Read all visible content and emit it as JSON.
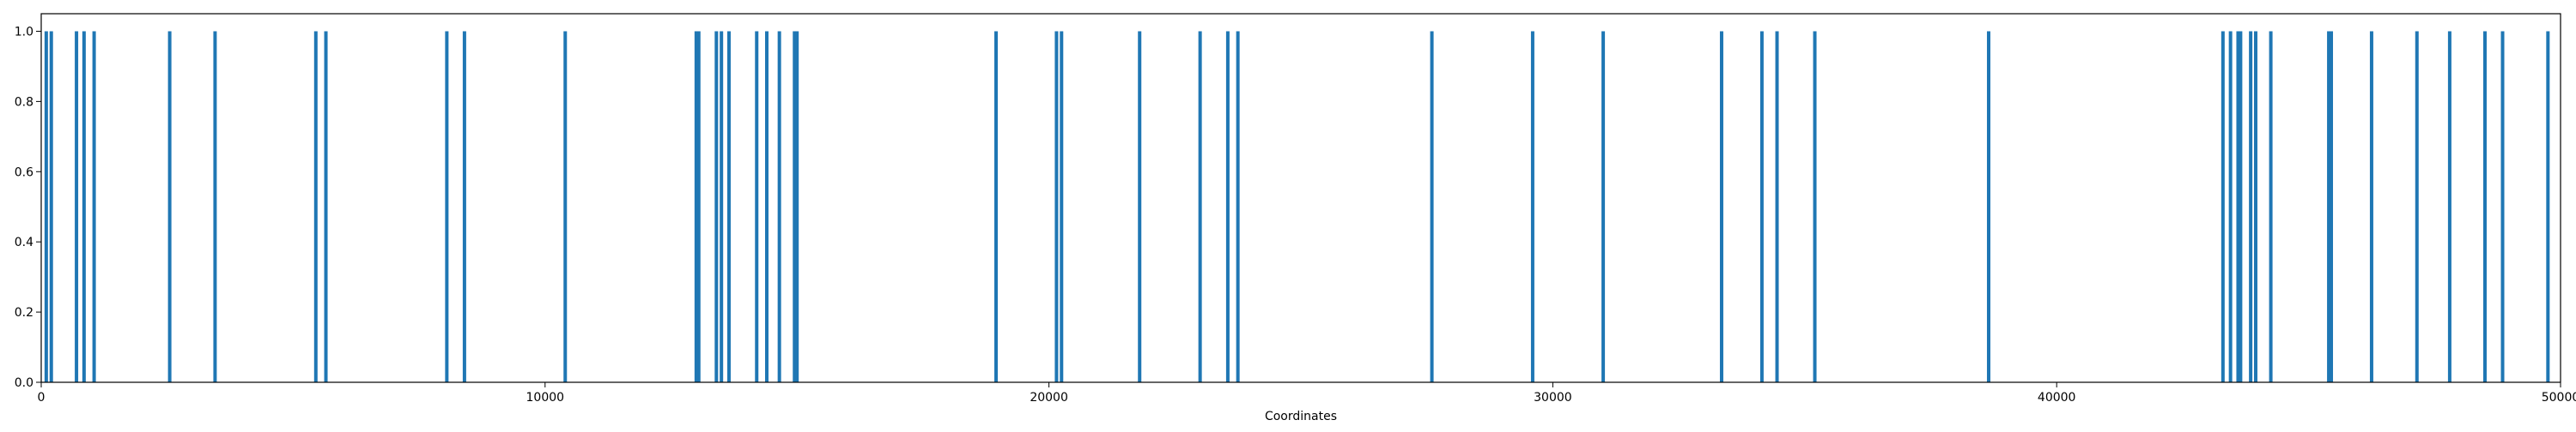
{
  "chart_data": {
    "type": "bar",
    "xlabel": "Coordinates",
    "ylabel": "",
    "title": "",
    "xlim": [
      0,
      50000
    ],
    "ylim": [
      0,
      1.05
    ],
    "grid": false,
    "bar_color": "#1f77b4",
    "x_ticks": [
      0,
      10000,
      20000,
      30000,
      40000,
      50000
    ],
    "y_ticks": [
      0.0,
      0.2,
      0.4,
      0.6,
      0.8,
      1.0
    ],
    "x_tick_labels": [
      "0",
      "10000",
      "20000",
      "30000",
      "40000",
      "50000"
    ],
    "y_tick_labels": [
      "0.0",
      "0.2",
      "0.4",
      "0.6",
      "0.8",
      "1.0"
    ],
    "x": [
      100,
      200,
      700,
      850,
      1050,
      2550,
      3450,
      5450,
      5650,
      8050,
      8400,
      10400,
      13000,
      13050,
      13400,
      13500,
      13650,
      14200,
      14400,
      14650,
      14950,
      15000,
      18950,
      20150,
      20250,
      21800,
      23000,
      23550,
      23750,
      27600,
      29600,
      31000,
      33350,
      34150,
      34450,
      35200,
      38650,
      43300,
      43450,
      43600,
      43650,
      43850,
      43950,
      44250,
      45400,
      45450,
      46250,
      47150,
      47800,
      48500,
      48850,
      49750
    ],
    "values": [
      1,
      1,
      1,
      1,
      1,
      1,
      1,
      1,
      1,
      1,
      1,
      1,
      1,
      1,
      1,
      1,
      1,
      1,
      1,
      1,
      1,
      1,
      1,
      1,
      1,
      1,
      1,
      1,
      1,
      1,
      1,
      1,
      1,
      1,
      1,
      1,
      1,
      1,
      1,
      1,
      1,
      1,
      1,
      1,
      1,
      1,
      1,
      1,
      1,
      1,
      1,
      1
    ]
  }
}
